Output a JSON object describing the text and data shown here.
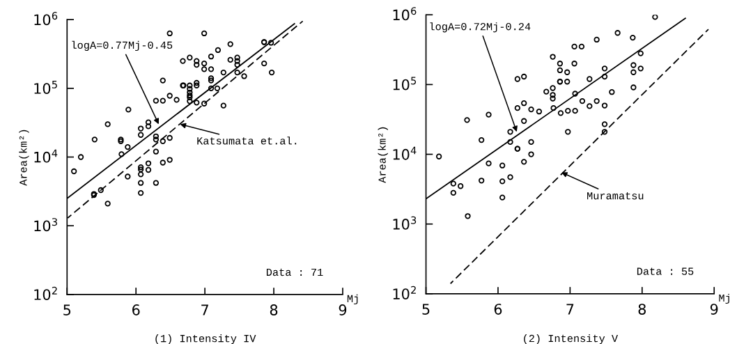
{
  "chart_data": [
    {
      "type": "scatter",
      "title": "(1) Intensity IV",
      "xlabel": "Mj",
      "ylabel": "Area(km²)",
      "log": "y",
      "xlim": [
        5,
        9
      ],
      "xticks": [
        5,
        6,
        7,
        8,
        9
      ],
      "ylim": [
        100,
        1000000
      ],
      "yticks": [
        {
          "value": 100,
          "label": "10$^{2}$"
        },
        {
          "value": 1000,
          "label": "10$^{3}$"
        },
        {
          "value": 10000,
          "label": "10$^{4}$"
        },
        {
          "value": 100000,
          "label": "10$^{5}$"
        },
        {
          "value": 1000000,
          "label": "10$^{6}$"
        }
      ],
      "grid": false,
      "legend": false,
      "series": [
        {
          "marker": "circle",
          "color": "#000000",
          "x": [
            5.1,
            5.2,
            5.4,
            5.39,
            5.39,
            5.49,
            5.59,
            5.59,
            5.78,
            5.78,
            5.79,
            5.88,
            5.88,
            5.89,
            6.07,
            6.07,
            6.07,
            6.07,
            6.07,
            6.07,
            6.07,
            6.18,
            6.18,
            6.18,
            6.18,
            6.39,
            6.29,
            6.39,
            6.29,
            6.29,
            6.29,
            6.29,
            6.39,
            6.39,
            6.49,
            6.49,
            6.49,
            6.49,
            6.59,
            6.68,
            6.68,
            6.78,
            6.88,
            6.88,
            6.99,
            6.99,
            7.09,
            7.19,
            7.37,
            7.37,
            7.47,
            7.47,
            7.47,
            7.47,
            7.57,
            7.86,
            7.86,
            7.96,
            7.86,
            7.97,
            7.27,
            7.27,
            7.18,
            7.09,
            7.09,
            7.09,
            7.09,
            6.99,
            6.99,
            6.88,
            6.88,
            6.88,
            6.78,
            6.78,
            6.78,
            6.78,
            6.78,
            6.78,
            6.69
          ],
          "values": [
            6200.0,
            10000.0,
            18000.0,
            2900.0,
            2800.0,
            3300.0,
            2100.0,
            30000.0,
            18000.0,
            17000.0,
            11000.0,
            14000.0,
            5200.0,
            49000.0,
            26000.0,
            21000.0,
            7100.0,
            6600.0,
            5600.0,
            4200.0,
            3000.0,
            32000.0,
            28000.0,
            8100.0,
            6500.0,
            130000.0,
            66000.0,
            66000.0,
            20000.0,
            18000.0,
            12000.0,
            4200.0,
            17000.0,
            8300.0,
            19000.0,
            9100.0,
            630000.0,
            78000.0,
            68000.0,
            250000.0,
            110000.0,
            280000.0,
            250000.0,
            220000.0,
            230000.0,
            630000.0,
            290000.0,
            360000.0,
            440000.0,
            260000.0,
            280000.0,
            250000.0,
            220000.0,
            170000.0,
            150000.0,
            470000.0,
            470000.0,
            460000.0,
            230000.0,
            170000.0,
            170000.0,
            56000.0,
            100000.0,
            190000.0,
            140000.0,
            130000.0,
            100000.0,
            190000.0,
            60000.0,
            62000.0,
            120000.0,
            110000.0,
            110000.0,
            98000.0,
            87000.0,
            79000.0,
            74000.0,
            65000.0,
            110000.0
          ]
        },
        {
          "type": "line",
          "color": "#000000",
          "line_style": "solid",
          "x": [
            5,
            8.3
          ],
          "values": [
            2500,
            870000
          ]
        },
        {
          "type": "line",
          "color": "#000000",
          "line_style": "dashed",
          "x": [
            5.01,
            8.42
          ],
          "values": [
            1300,
            950000
          ]
        }
      ],
      "annotations": [
        {
          "text": "logA=0.77Mj-0.45",
          "x": 6.33,
          "y": 30000
        },
        {
          "text": "Katsumata et.al.",
          "x": 6.64,
          "y": 30000
        },
        "Data : 71"
      ]
    },
    {
      "type": "scatter",
      "title": "(2) Intensity V",
      "xlabel": "Mj",
      "ylabel": "Area(km²)",
      "log": "y",
      "xlim": [
        5,
        9
      ],
      "xticks": [
        5,
        6,
        7,
        8,
        9
      ],
      "ylim": [
        100,
        1000000
      ],
      "yticks": [
        {
          "value": 100,
          "label": "10$^{2}$"
        },
        {
          "value": 1000,
          "label": "10$^{3}$"
        },
        {
          "value": 10000,
          "label": "10$^{4}$"
        },
        {
          "value": 100000,
          "label": "10$^{5}$"
        },
        {
          "value": 1000000,
          "label": "10$^{6}$"
        }
      ],
      "grid": false,
      "legend": false,
      "series": [
        {
          "marker": "circle",
          "color": "#000000",
          "x": [
            5.18,
            5.38,
            5.38,
            5.48,
            5.58,
            5.57,
            5.77,
            5.77,
            5.87,
            5.87,
            6.06,
            6.06,
            6.06,
            6.17,
            6.17,
            6.17,
            6.27,
            6.36,
            6.27,
            6.36,
            6.36,
            6.27,
            6.27,
            6.36,
            6.46,
            6.46,
            6.46,
            6.57,
            6.67,
            6.76,
            6.76,
            6.76,
            6.76,
            6.77,
            6.86,
            6.86,
            6.86,
            6.86,
            6.96,
            6.96,
            6.87,
            6.97,
            7.07,
            6.97,
            7.06,
            7.16,
            7.06,
            7.07,
            7.17,
            7.27,
            7.27,
            7.37,
            7.37,
            7.48,
            7.48,
            7.48,
            7.48,
            7.48,
            7.58,
            7.66,
            7.87,
            7.88,
            7.88,
            7.98,
            7.98,
            7.88,
            8.18
          ],
          "values": [
            9300.0,
            3800.0,
            2800.0,
            3500.0,
            1300.0,
            31000.0,
            16000.0,
            4200.0,
            37000.0,
            7400.0,
            6900.0,
            4100.0,
            2400.0,
            4700.0,
            21000.0,
            15000.0,
            120000.0,
            130000.0,
            46000.0,
            54000.0,
            30000.0,
            12000.0,
            12000.0,
            7800.0,
            44000.0,
            15000.0,
            10000.0,
            41000.0,
            79000.0,
            250000.0,
            89000.0,
            71000.0,
            63000.0,
            46000.0,
            200000.0,
            160000.0,
            110000.0,
            110000.0,
            150000.0,
            110000.0,
            39000.0,
            42000.0,
            42000.0,
            21000.0,
            350000.0,
            350000.0,
            200000.0,
            74000.0,
            58000.0,
            120000.0,
            49000.0,
            440000.0,
            58000.0,
            170000.0,
            130000.0,
            50000.0,
            27000.0,
            21000.0,
            78000.0,
            550000.0,
            470000.0,
            190000.0,
            150000.0,
            170000.0,
            280000.0,
            91000.0,
            930000.0
          ]
        },
        {
          "type": "line",
          "color": "#000000",
          "line_style": "solid",
          "x": [
            5,
            8.6
          ],
          "values": [
            2300,
            890000
          ]
        },
        {
          "type": "line",
          "color": "#000000",
          "line_style": "dashed",
          "x": [
            5.34,
            8.92
          ],
          "values": [
            140,
            620000
          ]
        }
      ],
      "annotations": [
        {
          "text": "logA=0.72Mj-0.24",
          "x": 6.26,
          "y": 21000
        },
        {
          "text": "Muramatsu",
          "x": 6.88,
          "y": 5500
        },
        "Data : 55"
      ]
    }
  ]
}
